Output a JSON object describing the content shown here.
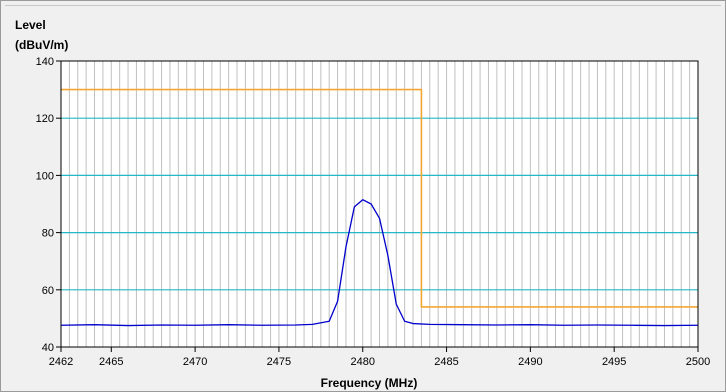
{
  "chart_data": {
    "type": "line",
    "xlabel": "Frequency (MHz)",
    "ylabel": "Level (dBuV/m)",
    "ylabel_lines": [
      "Level",
      "(dBuV/m)"
    ],
    "xlim": [
      2462,
      2500
    ],
    "ylim": [
      40,
      140
    ],
    "x_ticks": [
      2462,
      2465,
      2470,
      2475,
      2480,
      2485,
      2490,
      2495,
      2500
    ],
    "y_ticks": [
      40,
      60,
      80,
      100,
      120,
      140
    ],
    "grid": true,
    "colors": {
      "trace": "#0000cc",
      "limit": "#f5a533",
      "hgrid": "#22b8c8",
      "vgrid": "#c0c0c0",
      "plot_bg": "#ffffff"
    },
    "series": [
      {
        "x": [
          2462,
          2464,
          2466,
          2468,
          2470,
          2472,
          2474,
          2476,
          2477,
          2478,
          2478.5,
          2479,
          2479.5,
          2480,
          2480.5,
          2481,
          2481.5,
          2482,
          2482.5,
          2483,
          2484,
          2486,
          2488,
          2490,
          2492,
          2494,
          2496,
          2498,
          2500
        ],
        "y": [
          47.6,
          47.8,
          47.5,
          47.7,
          47.6,
          47.8,
          47.6,
          47.7,
          47.9,
          49,
          56,
          75,
          89,
          91.5,
          90,
          85,
          72,
          55,
          49,
          48.2,
          47.9,
          47.8,
          47.7,
          47.8,
          47.6,
          47.7,
          47.6,
          47.5,
          47.6
        ]
      },
      {
        "x": [
          2462,
          2483.5,
          2483.5,
          2500
        ],
        "y": [
          130,
          130,
          54,
          54
        ]
      }
    ]
  }
}
